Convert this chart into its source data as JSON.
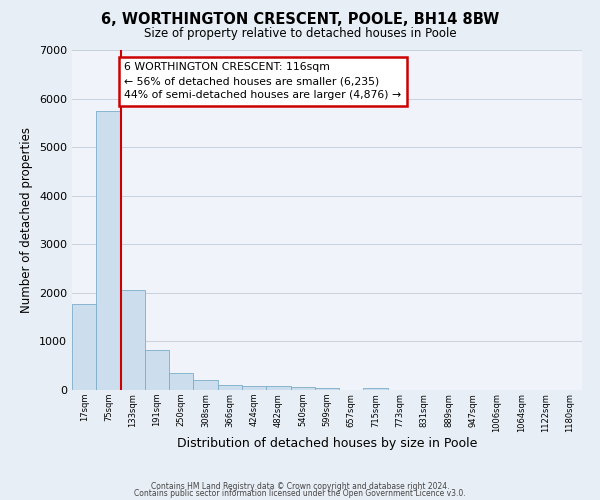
{
  "title": "6, WORTHINGTON CRESCENT, POOLE, BH14 8BW",
  "subtitle": "Size of property relative to detached houses in Poole",
  "xlabel": "Distribution of detached houses by size in Poole",
  "ylabel": "Number of detached properties",
  "xlabels": [
    "17sqm",
    "75sqm",
    "133sqm",
    "191sqm",
    "250sqm",
    "308sqm",
    "366sqm",
    "424sqm",
    "482sqm",
    "540sqm",
    "599sqm",
    "657sqm",
    "715sqm",
    "773sqm",
    "831sqm",
    "889sqm",
    "947sqm",
    "1006sqm",
    "1064sqm",
    "1122sqm",
    "1180sqm"
  ],
  "bar_values": [
    1780,
    5750,
    2050,
    820,
    360,
    210,
    110,
    80,
    80,
    55,
    50,
    0,
    45,
    0,
    0,
    0,
    0,
    0,
    0,
    0,
    0
  ],
  "bar_color": "#ccdded",
  "bar_edge_color": "#7aaec8",
  "red_line_color": "#cc0000",
  "annotation_box_text": "6 WORTHINGTON CRESCENT: 116sqm\n← 56% of detached houses are smaller (6,235)\n44% of semi-detached houses are larger (4,876) →",
  "annotation_box_color": "#ffffff",
  "annotation_box_edge_color": "#cc0000",
  "ylim": [
    0,
    7000
  ],
  "yticks": [
    0,
    1000,
    2000,
    3000,
    4000,
    5000,
    6000,
    7000
  ],
  "bg_color": "#e8eef5",
  "plot_bg_color": "#f0f4fa",
  "grid_color": "#c8d0dc",
  "footer_line1": "Contains HM Land Registry data © Crown copyright and database right 2024.",
  "footer_line2": "Contains public sector information licensed under the Open Government Licence v3.0."
}
